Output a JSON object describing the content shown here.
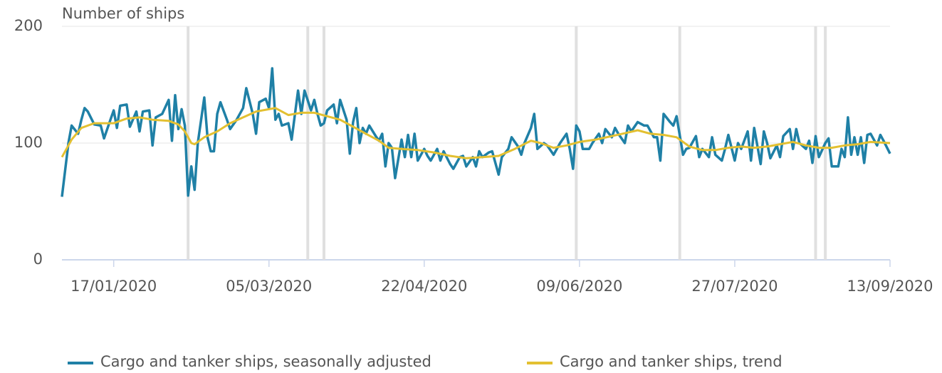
{
  "chart_data": {
    "type": "line",
    "y_axis_title": "Number of ships",
    "xlim": [
      "2020-01-01",
      "2020-09-13"
    ],
    "xticks": [
      {
        "value": "2020-01-17",
        "label": "17/01/2020"
      },
      {
        "value": "2020-03-05",
        "label": "05/03/2020"
      },
      {
        "value": "2020-04-22",
        "label": "22/04/2020"
      },
      {
        "value": "2020-06-09",
        "label": "09/06/2020"
      },
      {
        "value": "2020-07-27",
        "label": "27/07/2020"
      },
      {
        "value": "2020-09-13",
        "label": "13/09/2020"
      }
    ],
    "ylim": [
      0,
      200
    ],
    "yticks": [
      0,
      100,
      200
    ],
    "grid": true,
    "legend": "bottom",
    "highlight_dates": [
      "2020-02-09",
      "2020-03-17",
      "2020-03-22",
      "2020-06-08",
      "2020-07-10",
      "2020-08-21",
      "2020-08-24"
    ],
    "series": [
      {
        "name": "Cargo and tanker ships, seasonally adjusted",
        "color": "#1f80a6",
        "x": [
          "2020-01-01",
          "2020-01-03",
          "2020-01-04",
          "2020-01-06",
          "2020-01-07",
          "2020-01-08",
          "2020-01-09",
          "2020-01-11",
          "2020-01-13",
          "2020-01-14",
          "2020-01-16",
          "2020-01-17",
          "2020-01-18",
          "2020-01-19",
          "2020-01-21",
          "2020-01-22",
          "2020-01-24",
          "2020-01-25",
          "2020-01-26",
          "2020-01-28",
          "2020-01-29",
          "2020-01-30",
          "2020-02-01",
          "2020-02-03",
          "2020-02-04",
          "2020-02-05",
          "2020-02-06",
          "2020-02-07",
          "2020-02-08",
          "2020-02-09",
          "2020-02-10",
          "2020-02-11",
          "2020-02-12",
          "2020-02-14",
          "2020-02-15",
          "2020-02-16",
          "2020-02-17",
          "2020-02-18",
          "2020-02-19",
          "2020-02-21",
          "2020-02-22",
          "2020-02-24",
          "2020-02-26",
          "2020-02-27",
          "2020-02-29",
          "2020-03-01",
          "2020-03-02",
          "2020-03-04",
          "2020-03-05",
          "2020-03-06",
          "2020-03-07",
          "2020-03-08",
          "2020-03-09",
          "2020-03-11",
          "2020-03-12",
          "2020-03-14",
          "2020-03-15",
          "2020-03-16",
          "2020-03-18",
          "2020-03-19",
          "2020-03-20",
          "2020-03-21",
          "2020-03-22",
          "2020-03-23",
          "2020-03-25",
          "2020-03-26",
          "2020-03-27",
          "2020-03-29",
          "2020-03-30",
          "2020-03-31",
          "2020-04-01",
          "2020-04-02",
          "2020-04-03",
          "2020-04-04",
          "2020-04-05",
          "2020-04-07",
          "2020-04-08",
          "2020-04-09",
          "2020-04-10",
          "2020-04-11",
          "2020-04-12",
          "2020-04-13",
          "2020-04-15",
          "2020-04-16",
          "2020-04-17",
          "2020-04-18",
          "2020-04-19",
          "2020-04-20",
          "2020-04-22",
          "2020-04-23",
          "2020-04-24",
          "2020-04-26",
          "2020-04-27",
          "2020-04-28",
          "2020-04-30",
          "2020-05-01",
          "2020-05-03",
          "2020-05-04",
          "2020-05-05",
          "2020-05-07",
          "2020-05-08",
          "2020-05-09",
          "2020-05-10",
          "2020-05-12",
          "2020-05-13",
          "2020-05-15",
          "2020-05-16",
          "2020-05-18",
          "2020-05-19",
          "2020-05-21",
          "2020-05-22",
          "2020-05-23",
          "2020-05-25",
          "2020-05-26",
          "2020-05-27",
          "2020-05-29",
          "2020-05-30",
          "2020-06-01",
          "2020-06-02",
          "2020-06-03",
          "2020-06-05",
          "2020-06-06",
          "2020-06-07",
          "2020-06-08",
          "2020-06-09",
          "2020-06-10",
          "2020-06-12",
          "2020-06-13",
          "2020-06-15",
          "2020-06-16",
          "2020-06-17",
          "2020-06-19",
          "2020-06-20",
          "2020-06-21",
          "2020-06-23",
          "2020-06-24",
          "2020-06-25",
          "2020-06-27",
          "2020-06-29",
          "2020-06-30",
          "2020-07-02",
          "2020-07-03",
          "2020-07-04",
          "2020-07-05",
          "2020-07-07",
          "2020-07-08",
          "2020-07-09",
          "2020-07-11",
          "2020-07-12",
          "2020-07-13",
          "2020-07-15",
          "2020-07-16",
          "2020-07-17",
          "2020-07-19",
          "2020-07-20",
          "2020-07-21",
          "2020-07-23",
          "2020-07-24",
          "2020-07-25",
          "2020-07-27",
          "2020-07-28",
          "2020-07-29",
          "2020-07-31",
          "2020-08-01",
          "2020-08-02",
          "2020-08-04",
          "2020-08-05",
          "2020-08-06",
          "2020-08-07",
          "2020-08-09",
          "2020-08-10",
          "2020-08-11",
          "2020-08-13",
          "2020-08-14",
          "2020-08-15",
          "2020-08-16",
          "2020-08-18",
          "2020-08-19",
          "2020-08-20",
          "2020-08-21",
          "2020-08-22",
          "2020-08-24",
          "2020-08-25",
          "2020-08-26",
          "2020-08-28",
          "2020-08-29",
          "2020-08-30",
          "2020-08-31",
          "2020-09-01",
          "2020-09-02",
          "2020-09-03",
          "2020-09-04",
          "2020-09-05",
          "2020-09-06",
          "2020-09-07",
          "2020-09-09",
          "2020-09-10",
          "2020-09-11",
          "2020-09-13"
        ],
        "values": [
          54,
          100,
          115,
          108,
          120,
          130,
          127,
          116,
          115,
          104,
          120,
          128,
          113,
          132,
          133,
          114,
          127,
          110,
          127,
          128,
          98,
          122,
          125,
          137,
          102,
          141,
          112,
          129,
          115,
          55,
          80,
          60,
          100,
          139,
          105,
          93,
          93,
          125,
          135,
          120,
          112,
          120,
          130,
          147,
          125,
          108,
          135,
          138,
          130,
          164,
          120,
          125,
          115,
          117,
          103,
          145,
          125,
          145,
          128,
          137,
          125,
          115,
          117,
          128,
          133,
          117,
          137,
          120,
          91,
          118,
          130,
          100,
          113,
          108,
          115,
          106,
          102,
          108,
          80,
          100,
          96,
          70,
          103,
          88,
          107,
          88,
          108,
          85,
          95,
          89,
          85,
          95,
          85,
          93,
          82,
          78,
          88,
          89,
          80,
          88,
          80,
          93,
          88,
          92,
          93,
          73,
          88,
          95,
          105,
          97,
          90,
          100,
          113,
          125,
          95,
          100,
          98,
          90,
          95,
          100,
          108,
          95,
          78,
          115,
          110,
          95,
          95,
          100,
          108,
          100,
          112,
          105,
          113,
          108,
          100,
          115,
          110,
          118,
          115,
          115,
          105,
          105,
          85,
          125,
          118,
          115,
          123,
          90,
          95,
          96,
          106,
          88,
          95,
          88,
          105,
          90,
          85,
          95,
          107,
          85,
          100,
          95,
          110,
          85,
          113,
          82,
          110,
          100,
          87,
          98,
          88,
          106,
          112,
          95,
          112,
          100,
          95,
          102,
          83,
          106,
          88,
          100,
          104,
          80,
          80,
          95,
          88,
          122,
          90,
          105,
          90,
          105,
          83,
          107,
          108,
          98,
          107,
          102,
          91
        ]
      },
      {
        "name": "Cargo and tanker ships, trend",
        "color": "#e3c031",
        "x": [
          "2020-01-01",
          "2020-01-04",
          "2020-01-07",
          "2020-01-11",
          "2020-01-17",
          "2020-01-21",
          "2020-01-25",
          "2020-01-29",
          "2020-02-03",
          "2020-02-06",
          "2020-02-08",
          "2020-02-10",
          "2020-02-11",
          "2020-02-14",
          "2020-02-18",
          "2020-02-22",
          "2020-02-26",
          "2020-03-01",
          "2020-03-05",
          "2020-03-07",
          "2020-03-11",
          "2020-03-15",
          "2020-03-19",
          "2020-03-23",
          "2020-03-27",
          "2020-03-31",
          "2020-04-04",
          "2020-04-08",
          "2020-04-11",
          "2020-04-15",
          "2020-04-20",
          "2020-04-25",
          "2020-04-30",
          "2020-05-05",
          "2020-05-10",
          "2020-05-15",
          "2020-05-20",
          "2020-05-25",
          "2020-05-28",
          "2020-06-01",
          "2020-06-05",
          "2020-06-09",
          "2020-06-14",
          "2020-06-19",
          "2020-06-24",
          "2020-06-27",
          "2020-07-01",
          "2020-07-05",
          "2020-07-09",
          "2020-07-13",
          "2020-07-17",
          "2020-07-21",
          "2020-07-25",
          "2020-07-29",
          "2020-08-02",
          "2020-08-06",
          "2020-08-10",
          "2020-08-14",
          "2020-08-18",
          "2020-08-22",
          "2020-08-26",
          "2020-08-30",
          "2020-09-03",
          "2020-09-07",
          "2020-09-13"
        ],
        "values": [
          88,
          103,
          113,
          117,
          117,
          121,
          122,
          120,
          119,
          116,
          110,
          100,
          99,
          105,
          110,
          117,
          122,
          127,
          129,
          130,
          124,
          126,
          126,
          123,
          120,
          114,
          108,
          102,
          96,
          95,
          94,
          92,
          89,
          87,
          88,
          89,
          95,
          102,
          100,
          96,
          98,
          101,
          103,
          106,
          109,
          111,
          108,
          107,
          105,
          97,
          94,
          94,
          96,
          97,
          96,
          97,
          99,
          101,
          98,
          96,
          96,
          98,
          99,
          101,
          100
        ]
      }
    ]
  }
}
